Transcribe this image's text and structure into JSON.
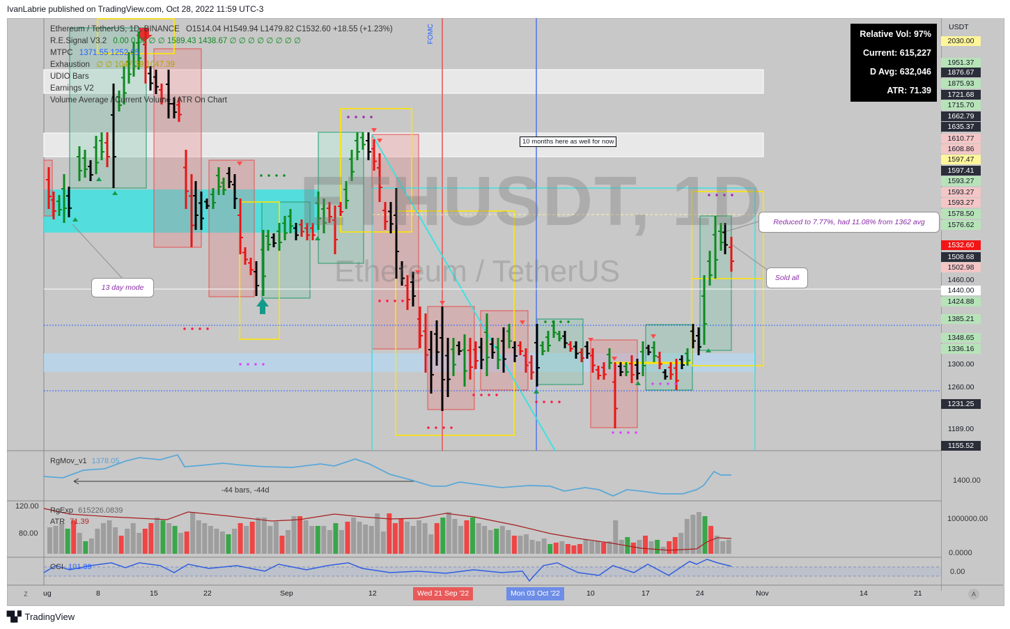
{
  "header": "IvanLabrie published on TradingView.com, Oct 28, 2022 11:59 UTC-3",
  "footer": {
    "brand": "TradingView",
    "logo": "tradingview-logo-icon"
  },
  "watermark": {
    "symbol": "ETHUSDT, 1D",
    "name": "Ethereum / TetherUS"
  },
  "legend": {
    "symbol": "Ethereum / TetherUS, 1D, BINANCE",
    "ohlc": "O1514.04  H1549.94  L1479.82  C1532.60  +18.55 (+1.23%)",
    "indicators": [
      {
        "name": "R.E.Signal V3.2",
        "values": "0.00  0.00  ∅  ∅  1589.43  1438.67  ∅ ∅ ∅ ∅ ∅ ∅ ∅ ∅"
      },
      {
        "name": "MTPC",
        "values": "1371.55  1252.65"
      },
      {
        "name": "Exhaustion",
        "values": "∅  ∅  1047.39  1047.39"
      },
      {
        "name": "UDIO Bars",
        "values": ""
      },
      {
        "name": "Earnings V2",
        "values": ""
      },
      {
        "name": "Volume Average / Current Volume / ATR On Chart",
        "values": ""
      }
    ]
  },
  "stats_box": {
    "relative_vol": "Relative Vol: 97%",
    "current": "Current: 615,227",
    "d_avg": "D Avg: 632,046",
    "atr": "ATR: 71.39"
  },
  "annotations": {
    "fomc": "FOMC",
    "ten_months": "10 months here as well for now",
    "thirteen_day": "13 day mode",
    "reduced": "Reduced to 7.77%, had 11.08% from 1362 avg",
    "sold_all": "Sold all",
    "bars_range": "-44 bars, -44d"
  },
  "price_scale": {
    "currency": "USDT",
    "labels": [
      {
        "text": "2030.00",
        "style": "yellow"
      },
      {
        "text": "1951.37",
        "style": "green"
      },
      {
        "text": "1876.67",
        "style": "dark"
      },
      {
        "text": "1875.93",
        "style": "green"
      },
      {
        "text": "1721.68",
        "style": "dark"
      },
      {
        "text": "1715.70",
        "style": "green"
      },
      {
        "text": "1662.79",
        "style": "dark"
      },
      {
        "text": "1635.37",
        "style": "dark"
      },
      {
        "text": "1610.77",
        "style": "pink"
      },
      {
        "text": "1608.86",
        "style": "pink"
      },
      {
        "text": "1597.47",
        "style": "yellow"
      },
      {
        "text": "1597.41",
        "style": "dark"
      },
      {
        "text": "1593.27",
        "style": "green"
      },
      {
        "text": "1593.27",
        "style": "pink"
      },
      {
        "text": "1593.27",
        "style": "pink"
      },
      {
        "text": "1578.50",
        "style": "green"
      },
      {
        "text": "1576.62",
        "style": "green"
      },
      {
        "text": "1532.60",
        "style": "red"
      },
      {
        "text": "1508.68",
        "style": "dark"
      },
      {
        "text": "1502.98",
        "style": "pink"
      },
      {
        "text": "1460.00",
        "style": "plain"
      },
      {
        "text": "1440.00",
        "style": "white"
      },
      {
        "text": "1424.88",
        "style": "green"
      },
      {
        "text": "1385.21",
        "style": "green"
      },
      {
        "text": "1348.65",
        "style": "green"
      },
      {
        "text": "1336.16",
        "style": "green"
      },
      {
        "text": "1300.00",
        "style": "plain"
      },
      {
        "text": "1260.00",
        "style": "plain"
      },
      {
        "text": "1231.25",
        "style": "dark"
      },
      {
        "text": "1189.00",
        "style": "plain"
      },
      {
        "text": "1155.52",
        "style": "dark"
      }
    ]
  },
  "panes": {
    "rgmov": {
      "name": "RgMov_v1",
      "value": "1378.05",
      "scale": "1400.00"
    },
    "rgexp": {
      "name": "RgExp",
      "value": "615226.0839",
      "atr_name": "ATR",
      "atr_value": "71.39",
      "left_scale": [
        "120.00",
        "80.00"
      ],
      "right_scale": [
        "1000000.00",
        "0.0000"
      ]
    },
    "cci": {
      "name": "CCI",
      "value": "101.89",
      "scale": "0.00"
    }
  },
  "time_axis": {
    "labels": [
      "ug",
      "8",
      "15",
      "22",
      "Sep",
      "12",
      "10",
      "17",
      "24",
      "Nov",
      "14",
      "21"
    ],
    "highlight_fomc": "Wed 21 Sep '22",
    "highlight_cursor": "Mon 03 Oct '22"
  },
  "corner_buttons": {
    "left": "Z",
    "right": "A"
  },
  "colors": {
    "up": "#0d8a1f",
    "down": "#e81414",
    "neutral": "#000000",
    "cyan": "#40e0e0",
    "yellow": "#ffe600"
  }
}
